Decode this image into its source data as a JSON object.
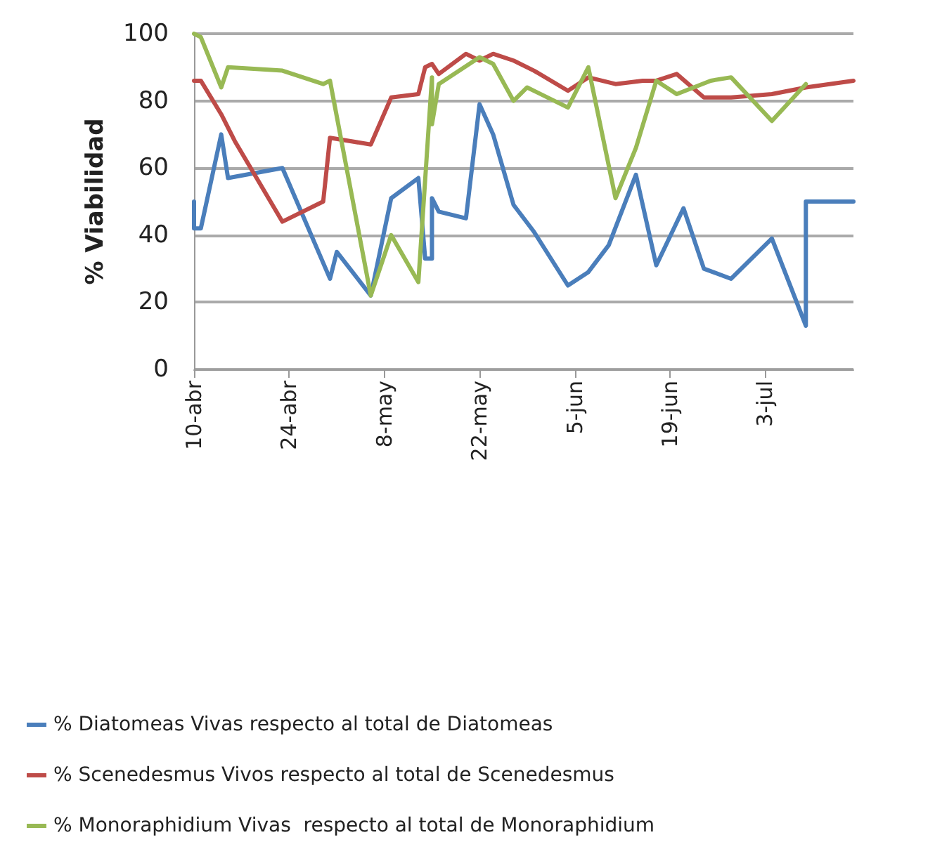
{
  "chart_data": {
    "type": "line",
    "ylabel": "% Viabilidad",
    "xlim": [
      "--04-10",
      "--07-16"
    ],
    "xticks": [
      {
        "value": "--04-10",
        "label": "10-abr"
      },
      {
        "value": "--04-24",
        "label": "24-abr"
      },
      {
        "value": "--05-08",
        "label": "8-may"
      },
      {
        "value": "--05-22",
        "label": "22-may"
      },
      {
        "value": "--06-05",
        "label": "5-jun"
      },
      {
        "value": "--06-19",
        "label": "19-jun"
      },
      {
        "value": "--07-03",
        "label": "3-jul"
      }
    ],
    "ylim": [
      0,
      100
    ],
    "yticks": [
      0,
      20,
      40,
      60,
      80,
      100
    ],
    "grid": "y",
    "legend": "bottom",
    "marker": "none",
    "line_style": "solid",
    "series": [
      {
        "name": "% Diatomeas Vivas respecto al total de Diatomeas",
        "color": "#4a7ebb",
        "x": [
          "--04-10",
          "--04-10",
          "--04-11",
          "--04-14",
          "--04-15",
          "--04-23",
          "--04-30",
          "--05-01",
          "--05-06",
          "--05-09",
          "--05-13",
          "--05-14",
          "--05-15",
          "--05-15",
          "--05-16",
          "--05-20",
          "--05-22",
          "--05-24",
          "--05-27",
          "--05-30",
          "--06-04",
          "--06-07",
          "--06-10",
          "--06-14",
          "--06-17",
          "--06-21",
          "--06-24",
          "--06-28",
          "--07-04",
          "--07-09",
          "--07-09",
          "--07-16"
        ],
        "values": [
          50,
          42,
          42,
          70,
          57,
          60,
          27,
          35,
          22,
          51,
          57,
          33,
          33,
          51,
          47,
          45,
          79,
          70,
          49,
          41,
          25,
          29,
          37,
          58,
          31,
          48,
          30,
          27,
          39,
          13,
          50,
          50
        ]
      },
      {
        "name": "% Scenedesmus Vivos respecto al total de Scenedesmus",
        "color": "#be4b48",
        "x": [
          "--04-10",
          "--04-11",
          "--04-14",
          "--04-16",
          "--04-23",
          "--04-29",
          "--04-30",
          "--05-06",
          "--05-09",
          "--05-13",
          "--05-14",
          "--05-15",
          "--05-16",
          "--05-20",
          "--05-22",
          "--05-24",
          "--05-27",
          "--05-30",
          "--06-04",
          "--06-07",
          "--06-11",
          "--06-15",
          "--06-17",
          "--06-20",
          "--06-24",
          "--06-28",
          "--07-04",
          "--07-09",
          "--07-16"
        ],
        "values": [
          86,
          86,
          76,
          68,
          44,
          50,
          69,
          67,
          81,
          82,
          90,
          91,
          88,
          94,
          92,
          94,
          92,
          89,
          83,
          87,
          85,
          86,
          86,
          88,
          81,
          81,
          82,
          84,
          86
        ]
      },
      {
        "name": "% Monoraphidium Vivas  respecto al total de Monoraphidium",
        "color": "#98b954",
        "x": [
          "--04-10",
          "--04-11",
          "--04-14",
          "--04-15",
          "--04-23",
          "--04-29",
          "--04-30",
          "--05-06",
          "--05-09",
          "--05-13",
          "--05-15",
          "--05-15",
          "--05-16",
          "--05-22",
          "--05-24",
          "--05-27",
          "--05-29",
          "--06-04",
          "--06-07",
          "--06-11",
          "--06-14",
          "--06-17",
          "--06-20",
          "--06-25",
          "--06-28",
          "--07-04",
          "--07-09"
        ],
        "values": [
          100,
          99,
          84,
          90,
          89,
          85,
          86,
          22,
          40,
          26,
          87,
          73,
          85,
          93,
          91,
          80,
          84,
          78,
          90,
          51,
          66,
          86,
          82,
          86,
          87,
          74,
          85
        ]
      }
    ]
  }
}
